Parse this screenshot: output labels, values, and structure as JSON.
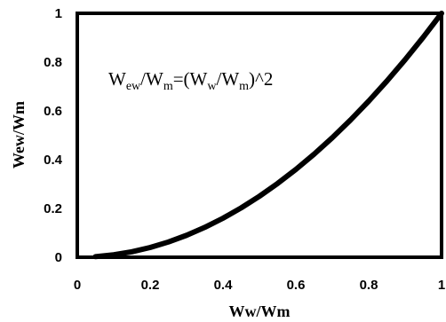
{
  "chart_data": {
    "type": "line",
    "title": "",
    "xlabel": "Ww/Wm",
    "ylabel": "Wew/Wm",
    "xlim": [
      0,
      1
    ],
    "ylim": [
      0,
      1
    ],
    "x_ticks": [
      "0",
      "0.2",
      "0.4",
      "0.6",
      "0.8",
      "1"
    ],
    "y_ticks": [
      "0",
      "0.2",
      "0.4",
      "0.6",
      "0.8",
      "1"
    ],
    "grid": false,
    "legend": "none",
    "annotation": {
      "parts": [
        {
          "text": "W",
          "sub": false
        },
        {
          "text": "ew",
          "sub": true
        },
        {
          "text": "/W",
          "sub": false
        },
        {
          "text": "m",
          "sub": true
        },
        {
          "text": "=(W",
          "sub": false
        },
        {
          "text": "w",
          "sub": true
        },
        {
          "text": "/W",
          "sub": false
        },
        {
          "text": "m",
          "sub": true
        },
        {
          "text": ")^2",
          "sub": false
        }
      ]
    },
    "series": [
      {
        "color": "#000000",
        "x": [
          0.05,
          0.1,
          0.15,
          0.2,
          0.25,
          0.3,
          0.35,
          0.4,
          0.45,
          0.5,
          0.55,
          0.6,
          0.65,
          0.7,
          0.75,
          0.8,
          0.85,
          0.9,
          0.95,
          1.0
        ],
        "y": [
          0.0025,
          0.01,
          0.0225,
          0.04,
          0.0625,
          0.09,
          0.1225,
          0.16,
          0.2025,
          0.25,
          0.3025,
          0.36,
          0.4225,
          0.49,
          0.5625,
          0.64,
          0.7225,
          0.81,
          0.9025,
          1.0
        ]
      }
    ]
  }
}
